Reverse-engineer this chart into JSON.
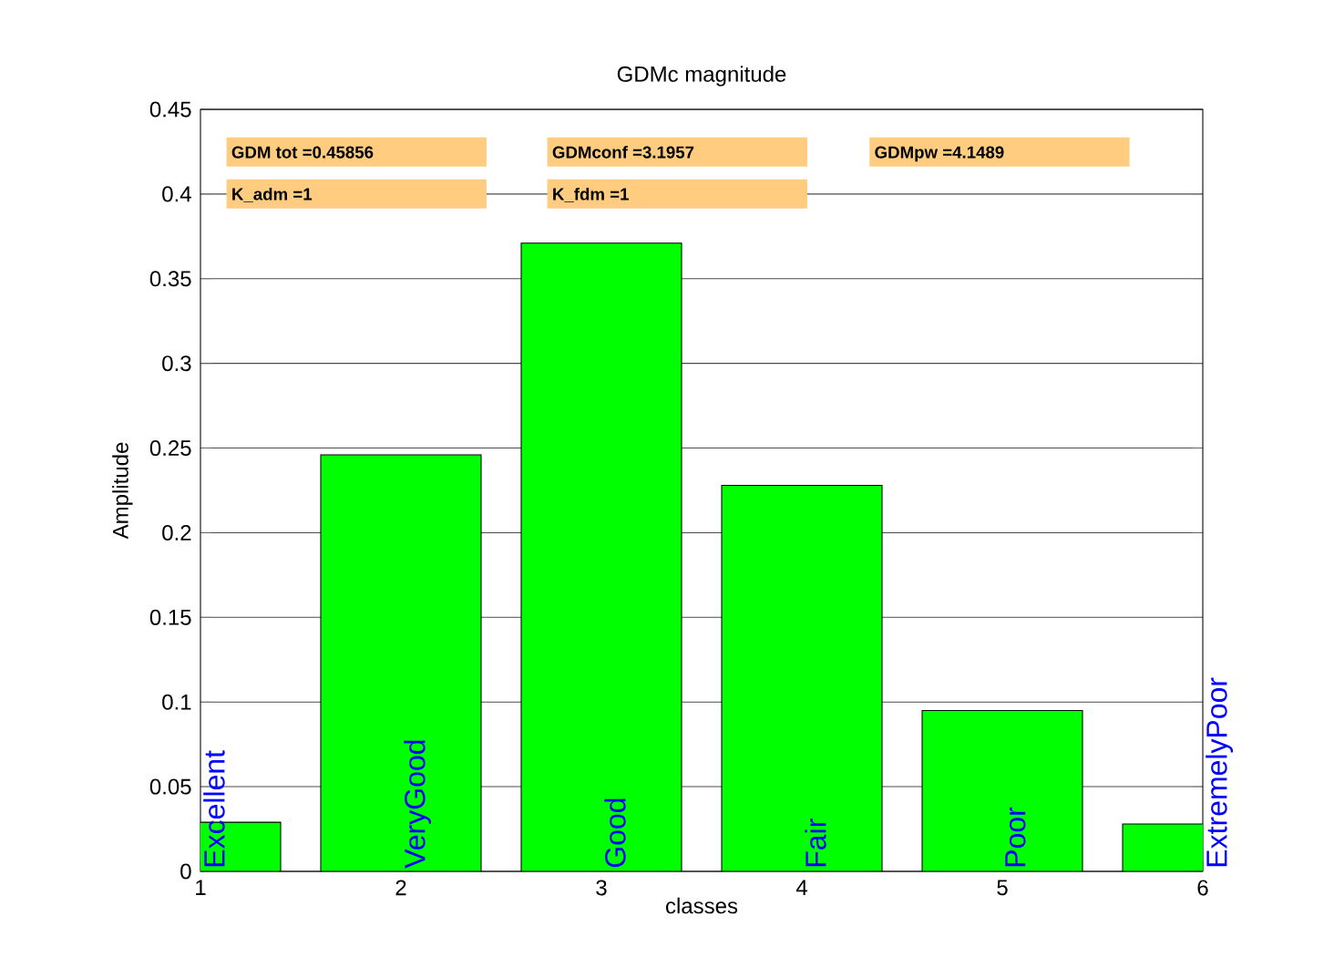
{
  "chart_data": {
    "type": "bar",
    "title": "GDMc magnitude",
    "xlabel": "classes",
    "ylabel": "Amplitude",
    "x": [
      1,
      2,
      3,
      4,
      5,
      6
    ],
    "values": [
      0.029,
      0.246,
      0.371,
      0.228,
      0.095,
      0.028
    ],
    "color": "#00ff00",
    "xlim": [
      1,
      6
    ],
    "xticks": [
      1,
      2,
      3,
      4,
      5,
      6
    ],
    "ylim": [
      0,
      0.45
    ],
    "yticks": [
      0,
      0.05,
      0.1,
      0.15,
      0.2,
      0.25,
      0.3,
      0.35,
      0.4,
      0.45
    ],
    "grid": "y",
    "annotations": [
      "GDM tot =0.45856",
      "GDMconf =3.1957",
      "GDMpw =4.1489",
      "K_adm =1",
      "K_fdm =1",
      {
        "text": "Excellent",
        "x": 1,
        "y": 0
      },
      {
        "text": "VeryGood",
        "x": 2,
        "y": 0
      },
      {
        "text": "Good",
        "x": 3,
        "y": 0
      },
      {
        "text": "Fair",
        "x": 4,
        "y": 0
      },
      {
        "text": "Poor",
        "x": 5,
        "y": 0
      },
      {
        "text": "ExtremelyPoor",
        "x": 6,
        "y": 0
      }
    ]
  }
}
